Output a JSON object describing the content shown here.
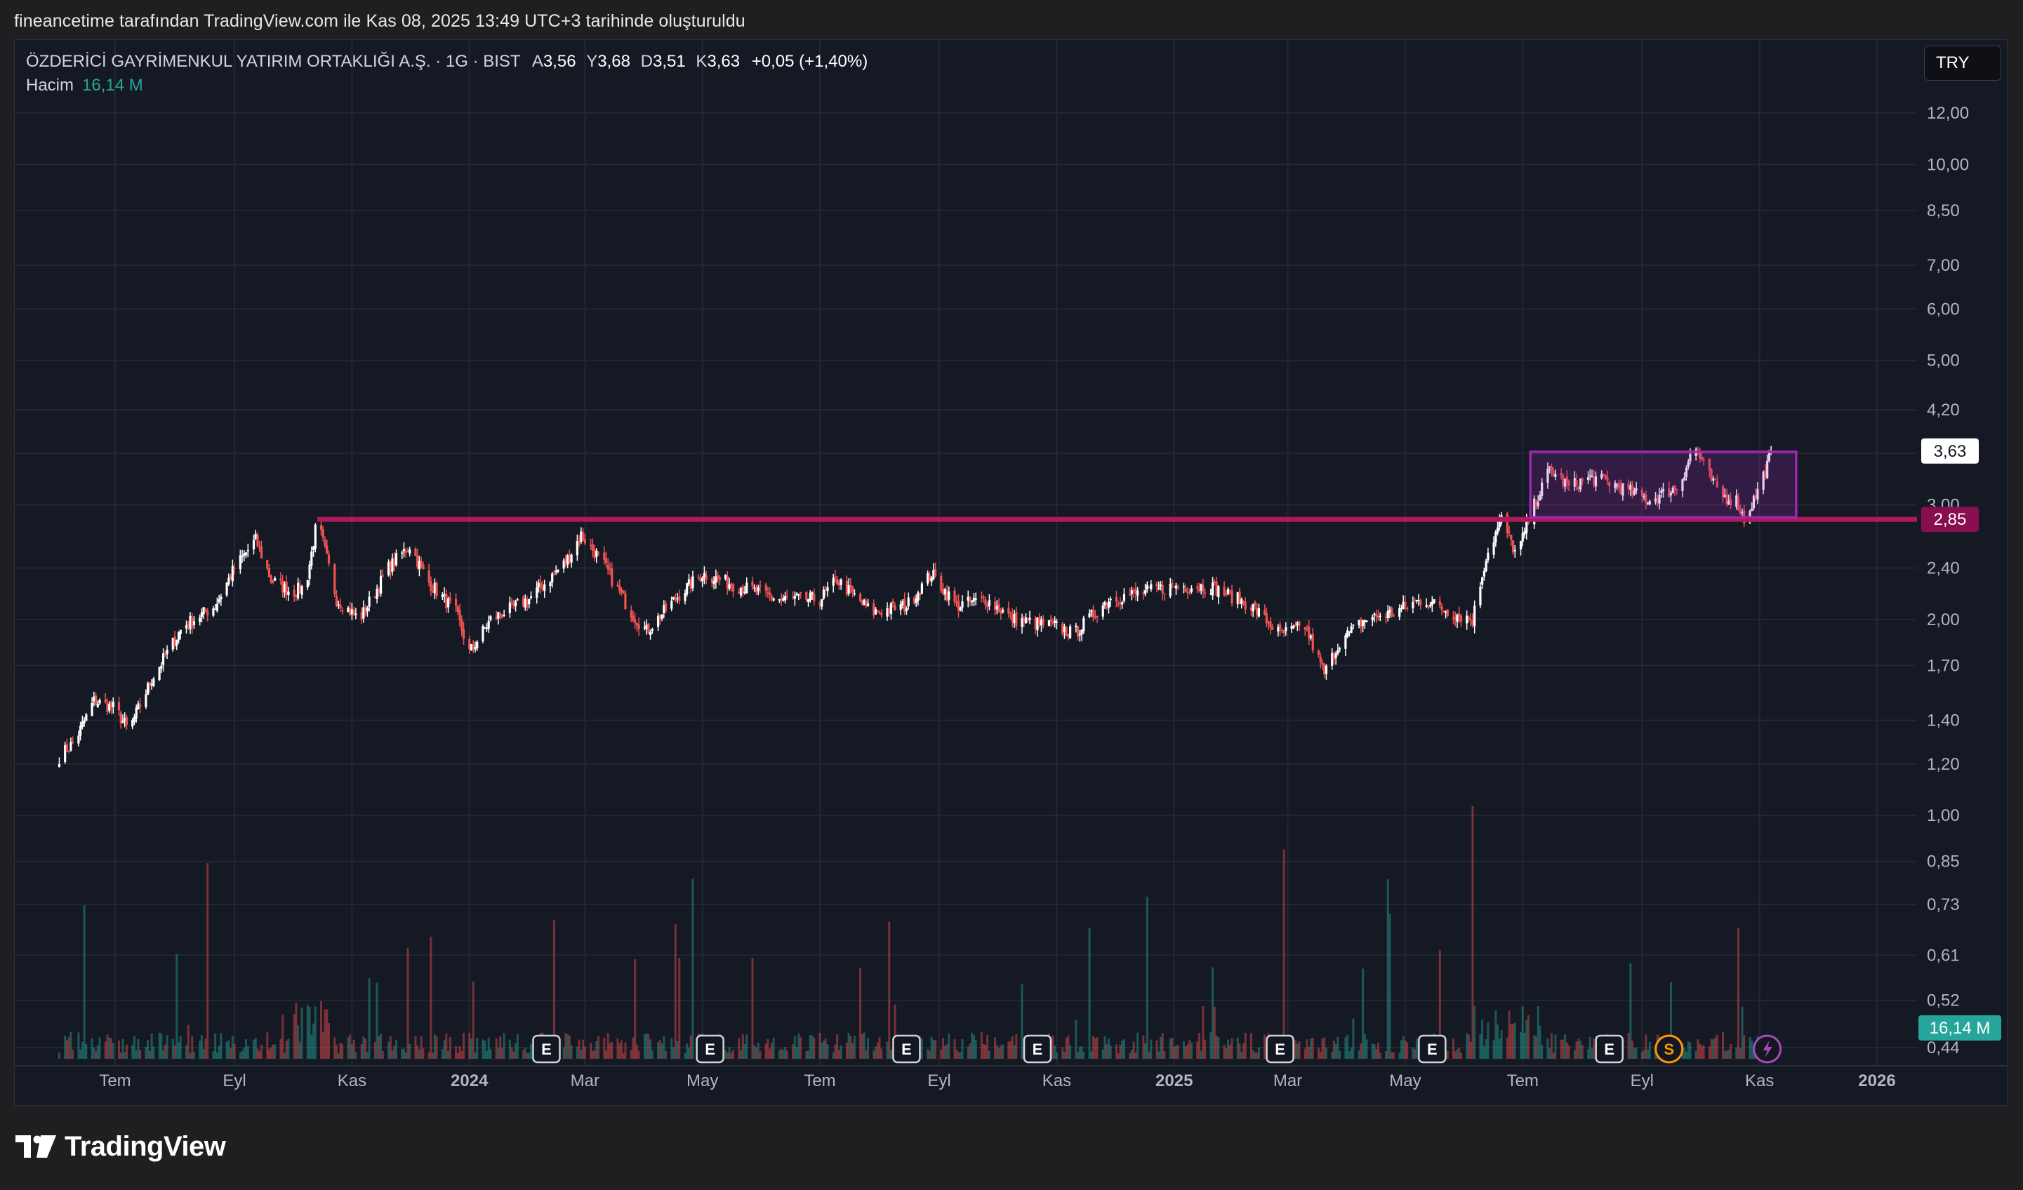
{
  "header": {
    "caption": "fineancetime tarafından TradingView.com ile Kas 08, 2025 13:49 UTC+3 tarihinde oluşturuldu"
  },
  "legend": {
    "symbol": "ÖZDERİCİ GAYRİMENKUL YATIRIM ORTAKLIĞI A.Ş. · 1G · BIST",
    "open_label": "A",
    "open": "3,56",
    "high_label": "Y",
    "high": "3,68",
    "low_label": "D",
    "low": "3,51",
    "close_label": "K",
    "close": "3,63",
    "change": "+0,05 (+1,40%)",
    "volume_label": "Hacim",
    "volume": "16,14 M"
  },
  "currency": "TRY",
  "footer": {
    "brand": "TradingView"
  },
  "colors": {
    "up": "#ffffff",
    "down": "#ef5350",
    "volume_up": "#26a69a",
    "volume_down": "#ef5350",
    "support_line": "#b0185c",
    "range_box": "#9c27b0",
    "last_price_bg": "#ffffff",
    "support_label_bg": "#880e4f",
    "volume_label_bg": "#26a69a"
  },
  "chart_data": {
    "type": "candlestick",
    "scale": "log",
    "y_ticks": [
      "12,00",
      "10,00",
      "8,50",
      "7,00",
      "6,00",
      "5,00",
      "4,20",
      "3,60",
      "3,00",
      "2,40",
      "2,00",
      "1,70",
      "1,40",
      "1,20",
      "1,00",
      "0,85",
      "0,73",
      "0,61",
      "0,52",
      "0,44"
    ],
    "y_tick_values": [
      12,
      10,
      8.5,
      7,
      6,
      5,
      4.2,
      3.6,
      3.0,
      2.4,
      2.0,
      1.7,
      1.4,
      1.2,
      1.0,
      0.85,
      0.73,
      0.61,
      0.52,
      0.44
    ],
    "x_ticks": [
      "Tem",
      "Eyl",
      "Kas",
      "2024",
      "Mar",
      "May",
      "Tem",
      "Eyl",
      "Kas",
      "2025",
      "Mar",
      "May",
      "Tem",
      "Eyl",
      "Kas",
      "2026"
    ],
    "x_tick_dates": [
      "2023-07-01",
      "2023-09-01",
      "2023-11-01",
      "2024-01-01",
      "2024-03-01",
      "2024-05-01",
      "2024-07-01",
      "2024-09-01",
      "2024-11-01",
      "2025-01-01",
      "2025-03-01",
      "2025-05-01",
      "2025-07-01",
      "2025-09-01",
      "2025-11-01",
      "2026-01-01"
    ],
    "x_tick_bold": [
      false,
      false,
      false,
      true,
      false,
      false,
      false,
      false,
      false,
      true,
      false,
      false,
      false,
      false,
      false,
      true
    ],
    "price_path": [
      [
        "2023-06-02",
        1.23
      ],
      [
        "2023-06-10",
        1.3
      ],
      [
        "2023-06-20",
        1.5
      ],
      [
        "2023-07-01",
        1.46
      ],
      [
        "2023-07-08",
        1.35
      ],
      [
        "2023-07-20",
        1.62
      ],
      [
        "2023-08-05",
        1.95
      ],
      [
        "2023-08-22",
        2.1
      ],
      [
        "2023-09-01",
        2.4
      ],
      [
        "2023-09-12",
        2.65
      ],
      [
        "2023-09-20",
        2.3
      ],
      [
        "2023-10-01",
        2.2
      ],
      [
        "2023-10-08",
        2.25
      ],
      [
        "2023-10-14",
        2.85
      ],
      [
        "2023-10-24",
        2.15
      ],
      [
        "2023-11-05",
        2.0
      ],
      [
        "2023-11-20",
        2.4
      ],
      [
        "2023-12-01",
        2.6
      ],
      [
        "2023-12-10",
        2.3
      ],
      [
        "2023-12-25",
        2.05
      ],
      [
        "2024-01-01",
        1.78
      ],
      [
        "2024-01-12",
        2.0
      ],
      [
        "2024-02-01",
        2.15
      ],
      [
        "2024-02-20",
        2.45
      ],
      [
        "2024-02-28",
        2.7
      ],
      [
        "2024-03-10",
        2.45
      ],
      [
        "2024-03-25",
        2.05
      ],
      [
        "2024-04-02",
        1.92
      ],
      [
        "2024-04-20",
        2.2
      ],
      [
        "2024-05-01",
        2.35
      ],
      [
        "2024-05-20",
        2.25
      ],
      [
        "2024-06-10",
        2.15
      ],
      [
        "2024-07-01",
        2.15
      ],
      [
        "2024-07-10",
        2.3
      ],
      [
        "2024-07-28",
        2.05
      ],
      [
        "2024-08-15",
        2.1
      ],
      [
        "2024-08-28",
        2.35
      ],
      [
        "2024-09-10",
        2.1
      ],
      [
        "2024-09-25",
        2.15
      ],
      [
        "2024-10-10",
        2.0
      ],
      [
        "2024-11-01",
        1.95
      ],
      [
        "2024-11-10",
        1.9
      ],
      [
        "2024-11-28",
        2.15
      ],
      [
        "2024-12-15",
        2.2
      ],
      [
        "2025-01-01",
        2.25
      ],
      [
        "2025-01-20",
        2.25
      ],
      [
        "2025-02-10",
        2.1
      ],
      [
        "2025-02-25",
        1.9
      ],
      [
        "2025-03-10",
        1.95
      ],
      [
        "2025-03-20",
        1.65
      ],
      [
        "2025-03-28",
        1.85
      ],
      [
        "2025-04-10",
        2.0
      ],
      [
        "2025-04-25",
        2.05
      ],
      [
        "2025-05-10",
        2.15
      ],
      [
        "2025-05-25",
        2.05
      ],
      [
        "2025-06-05",
        2.0
      ],
      [
        "2025-06-12",
        2.5
      ],
      [
        "2025-06-20",
        2.85
      ],
      [
        "2025-06-28",
        2.5
      ],
      [
        "2025-07-05",
        2.9
      ],
      [
        "2025-07-15",
        3.4
      ],
      [
        "2025-07-25",
        3.2
      ],
      [
        "2025-08-05",
        3.3
      ],
      [
        "2025-08-15",
        3.25
      ],
      [
        "2025-08-25",
        3.15
      ],
      [
        "2025-09-05",
        3.05
      ],
      [
        "2025-09-20",
        3.2
      ],
      [
        "2025-09-28",
        3.7
      ],
      [
        "2025-10-05",
        3.35
      ],
      [
        "2025-10-12",
        3.1
      ],
      [
        "2025-10-20",
        3.05
      ],
      [
        "2025-10-24",
        2.85
      ],
      [
        "2025-10-30",
        3.1
      ],
      [
        "2025-11-05",
        3.45
      ],
      [
        "2025-11-07",
        3.63
      ]
    ],
    "support_level": {
      "value": 2.85,
      "label": "2,85",
      "from": "2023-10-14"
    },
    "range_box": {
      "from": "2025-07-05",
      "to": "2025-11-20",
      "top": 3.62,
      "bottom": 2.87
    },
    "last_price": {
      "value": 3.63,
      "label": "3,63"
    },
    "volume_last": {
      "label": "16,14 M"
    },
    "events": [
      {
        "date": "2024-02-10",
        "type": "E"
      },
      {
        "date": "2024-05-05",
        "type": "E"
      },
      {
        "date": "2024-08-15",
        "type": "E"
      },
      {
        "date": "2024-10-22",
        "type": "E"
      },
      {
        "date": "2025-02-25",
        "type": "E"
      },
      {
        "date": "2025-05-15",
        "type": "E"
      },
      {
        "date": "2025-08-15",
        "type": "E"
      },
      {
        "date": "2025-09-15",
        "type": "S"
      },
      {
        "date": "2025-11-05",
        "type": "bolt"
      }
    ]
  }
}
